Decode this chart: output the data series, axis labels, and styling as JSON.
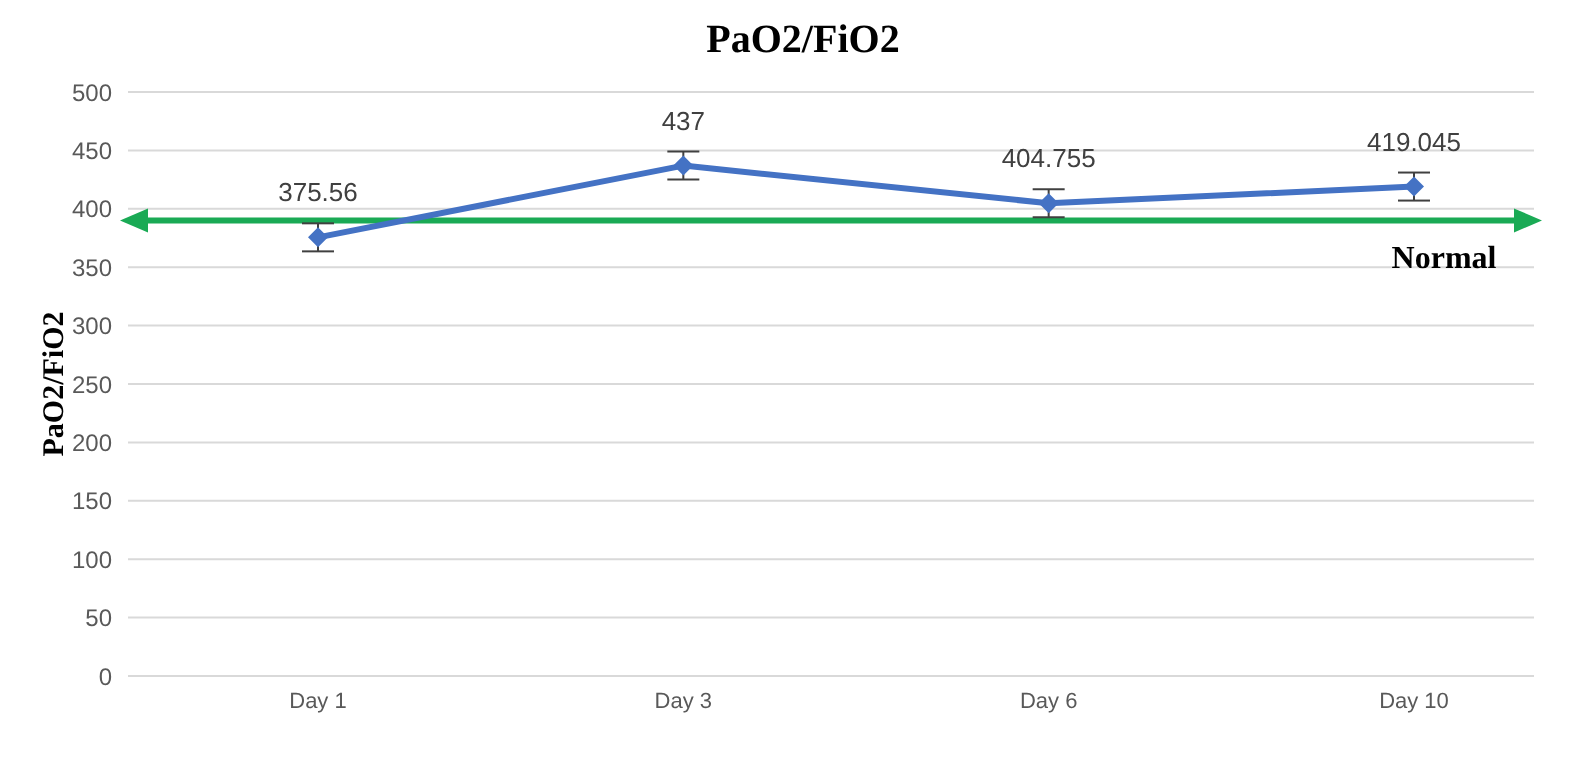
{
  "chart_data": {
    "type": "line",
    "title": "PaO2/FiO2",
    "ylabel": "PaO2/FiO2",
    "categories": [
      "Day 1",
      "Day 3",
      "Day 6",
      "Day 10"
    ],
    "series": [
      {
        "color": "#4472c4",
        "values": [
          375.56,
          437,
          404.755,
          419.045
        ],
        "errors": [
          12,
          12,
          12,
          12
        ]
      }
    ],
    "ylim": [
      0,
      500
    ],
    "yticks": [
      0,
      50,
      100,
      150,
      200,
      250,
      300,
      350,
      400,
      450,
      500
    ],
    "grid": "y",
    "marker": "diamond",
    "line_style": "solid",
    "data_labels": true,
    "ref_lines": [
      {
        "axis": "y",
        "value": 390,
        "label": "Normal",
        "color": "#1aaa55",
        "line_style": "solid"
      }
    ]
  }
}
